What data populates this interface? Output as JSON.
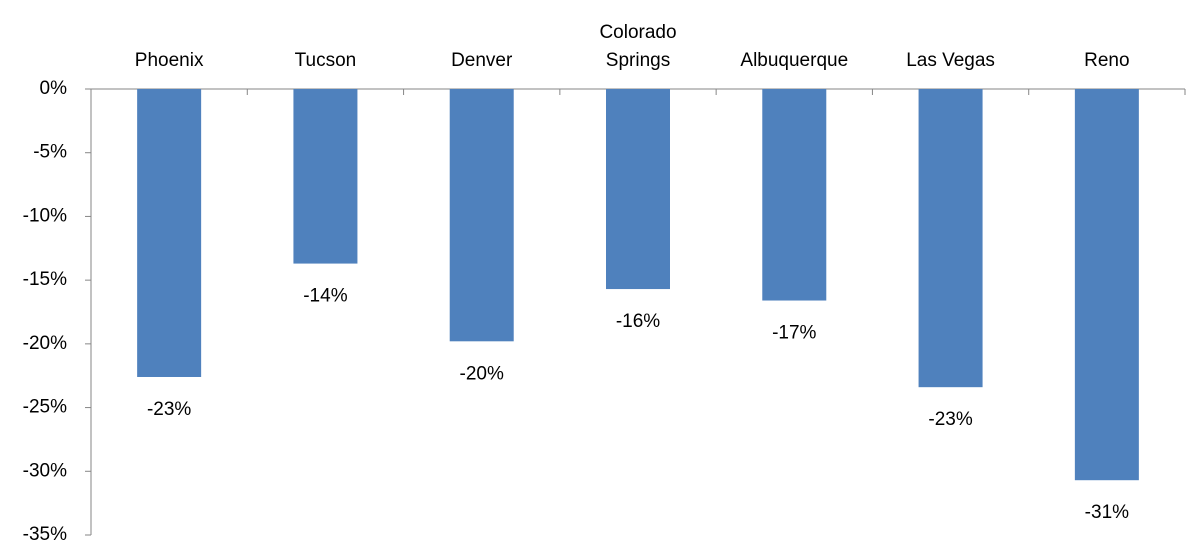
{
  "chart_data": {
    "type": "bar",
    "categories": [
      "Phoenix",
      "Tucson",
      "Denver",
      "Colorado Springs",
      "Albuquerque",
      "Las Vegas",
      "Reno"
    ],
    "values": [
      -22.6,
      -13.7,
      -19.8,
      -15.7,
      -16.6,
      -23.4,
      -30.7
    ],
    "value_labels": [
      "-23%",
      "-14%",
      "-20%",
      "-16%",
      "-17%",
      "-23%",
      "-31%"
    ],
    "color": "#4f81bd",
    "ylim": [
      -35,
      0
    ],
    "yticks": [
      {
        "value": 0,
        "label": "0%"
      },
      {
        "value": -5,
        "label": "-5%"
      },
      {
        "value": -10,
        "label": "-10%"
      },
      {
        "value": -15,
        "label": "-15%"
      },
      {
        "value": -20,
        "label": "-20%"
      },
      {
        "value": -25,
        "label": "-25%"
      },
      {
        "value": -30,
        "label": "-30%"
      },
      {
        "value": -35,
        "label": "-35%"
      }
    ],
    "grid": false
  }
}
